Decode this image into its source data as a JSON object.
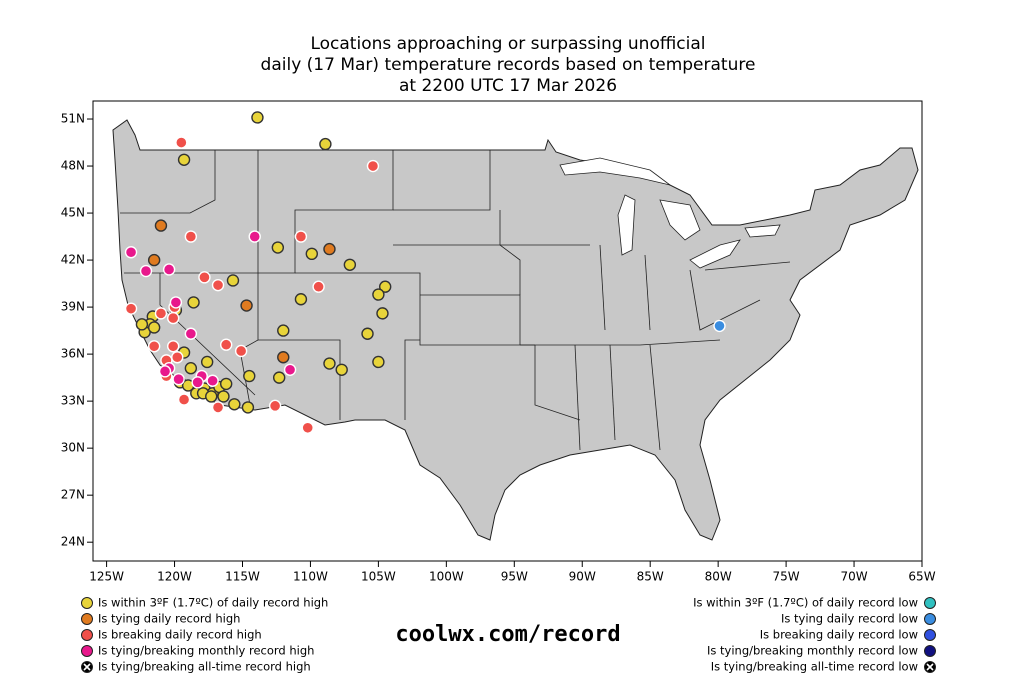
{
  "chart_data": {
    "type": "scatter",
    "title": [
      "Locations approaching or surpassing unofficial",
      "daily (17 Mar) temperature records based on temperature",
      "at 2200 UTC 17 Mar 2026"
    ],
    "annotation": "coolwx.com/record",
    "xlim": [
      -126,
      -65
    ],
    "ylim": [
      22.8,
      52.15
    ],
    "xticks": [
      {
        "value": -125,
        "label": "125W"
      },
      {
        "value": -120,
        "label": "120W"
      },
      {
        "value": -115,
        "label": "115W"
      },
      {
        "value": -110,
        "label": "110W"
      },
      {
        "value": -105,
        "label": "105W"
      },
      {
        "value": -100,
        "label": "100W"
      },
      {
        "value": -95,
        "label": "95W"
      },
      {
        "value": -90,
        "label": "90W"
      },
      {
        "value": -85,
        "label": "85W"
      },
      {
        "value": -80,
        "label": "80W"
      },
      {
        "value": -75,
        "label": "75W"
      },
      {
        "value": -70,
        "label": "70W"
      },
      {
        "value": -65,
        "label": "65W"
      }
    ],
    "yticks": [
      {
        "value": 24,
        "label": "24N"
      },
      {
        "value": 27,
        "label": "27N"
      },
      {
        "value": 30,
        "label": "30N"
      },
      {
        "value": 33,
        "label": "33N"
      },
      {
        "value": 36,
        "label": "36N"
      },
      {
        "value": 39,
        "label": "39N"
      },
      {
        "value": 42,
        "label": "42N"
      },
      {
        "value": 45,
        "label": "45N"
      },
      {
        "value": 48,
        "label": "48N"
      },
      {
        "value": 51,
        "label": "51N"
      }
    ],
    "series": [
      {
        "name": "Is within 3ºF (1.7ºC) of daily record high",
        "color": "#e8d43a",
        "side": "left",
        "x": [
          -113.9,
          -108.9,
          -119.3,
          -112.4,
          -109.9,
          -107.1,
          -115.7,
          -110.7,
          -104.5,
          -105.0,
          -104.7,
          -118.6,
          -119.9,
          -112.0,
          -105.8,
          -121.6,
          -121.8,
          -122.2,
          -121.5,
          -122.4,
          -119.3,
          -117.6,
          -118.8,
          -105.0,
          -108.6,
          -107.7,
          -114.5,
          -112.3,
          -119.6,
          -119.0,
          -118.4,
          -117.8,
          -117.2,
          -116.7,
          -116.2,
          -116.4,
          -115.6,
          -114.6,
          -117.9,
          -117.3
        ],
        "y": [
          51.1,
          49.4,
          48.4,
          42.8,
          42.4,
          41.7,
          40.7,
          39.5,
          40.3,
          39.8,
          38.6,
          39.3,
          38.8,
          37.5,
          37.3,
          38.4,
          37.9,
          37.4,
          37.7,
          37.9,
          36.1,
          35.5,
          35.1,
          35.5,
          35.4,
          35.0,
          34.6,
          34.5,
          34.2,
          34.0,
          33.5,
          33.8,
          33.5,
          33.9,
          34.1,
          33.3,
          32.8,
          32.6,
          33.5,
          33.3
        ]
      },
      {
        "name": "Is tying daily record high",
        "color": "#e07b20",
        "side": "left",
        "x": [
          -121.0,
          -121.5,
          -108.6,
          -114.7,
          -112.0
        ],
        "y": [
          44.2,
          42.0,
          42.7,
          39.1,
          35.8
        ]
      },
      {
        "name": "Is breaking daily record high",
        "color": "#f0504a",
        "side": "left",
        "x": [
          -119.5,
          -105.4,
          -118.8,
          -110.7,
          -123.2,
          -117.8,
          -116.8,
          -109.4,
          -121.0,
          -120.1,
          -121.5,
          -120.1,
          -119.8,
          -116.2,
          -115.1,
          -120.6,
          -119.3,
          -116.8,
          -112.6,
          -110.2,
          -120.0,
          -120.6
        ],
        "y": [
          49.5,
          48.0,
          43.5,
          43.5,
          38.9,
          40.9,
          40.4,
          40.3,
          38.6,
          38.3,
          36.5,
          36.5,
          35.8,
          36.6,
          36.2,
          34.6,
          33.1,
          32.6,
          32.7,
          31.3,
          39.0,
          35.6
        ]
      },
      {
        "name": "Is tying/breaking monthly record high",
        "color": "#e8188c",
        "side": "left",
        "x": [
          -123.2,
          -122.1,
          -120.4,
          -114.1,
          -119.9,
          -118.8,
          -120.4,
          -111.5,
          -119.7,
          -118.0,
          -117.2,
          -118.3,
          -120.7
        ],
        "y": [
          42.5,
          41.3,
          41.4,
          43.5,
          39.3,
          37.3,
          35.1,
          35.0,
          34.4,
          34.6,
          34.3,
          34.2,
          34.9
        ]
      },
      {
        "name": "Is tying/breaking all-time record high",
        "color": "#000000",
        "side": "left",
        "x": [],
        "y": []
      },
      {
        "name": "Is within 3ºF (1.7ºC) of daily record low",
        "color": "#30c0c0",
        "side": "right",
        "x": [],
        "y": []
      },
      {
        "name": "Is tying daily record low",
        "color": "#3a8de0",
        "side": "right",
        "x": [
          -79.9
        ],
        "y": [
          37.8
        ]
      },
      {
        "name": "Is breaking daily record low",
        "color": "#3050e0",
        "side": "right",
        "x": [],
        "y": []
      },
      {
        "name": "Is tying/breaking monthly record low",
        "color": "#101080",
        "side": "right",
        "x": [],
        "y": []
      },
      {
        "name": "Is tying/breaking all-time record low",
        "color": "#000000",
        "side": "right",
        "x": [],
        "y": []
      }
    ]
  }
}
